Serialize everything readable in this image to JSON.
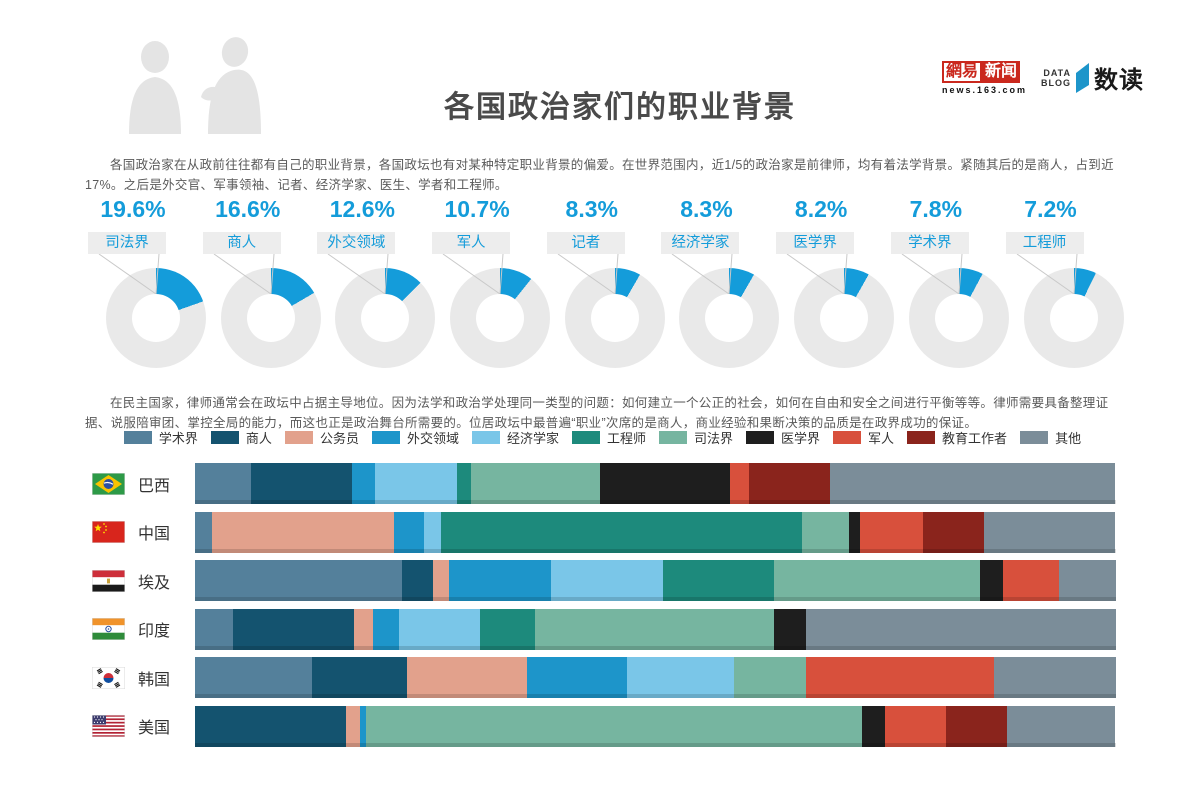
{
  "header": {
    "title": "各国政治家们的职业背景",
    "brand": {
      "netease_name": "網易",
      "netease_news": "新闻",
      "netease_site": "news.163.com",
      "datablog_line1": "DATA",
      "datablog_line2": "BLOG",
      "shudu": "数读"
    }
  },
  "intro": "各国政治家在从政前往往都有自己的职业背景，各国政坛也有对某种特定职业背景的偏爱。在世界范围内，近1/5的政治家是前律师，均有着法学背景。紧随其后的是商人，占到近17%。之后是外交官、军事领袖、记者、经济学家、医生、学者和工程师。",
  "analysis": "在民主国家，律师通常会在政坛中占据主导地位。因为法学和政治学处理同一类型的问题：如何建立一个公正的社会，如何在自由和安全之间进行平衡等等。律师需要具备整理证据、说服陪审团、掌控全局的能力，而这也正是政治舞台所需要的。位居政坛中最普遍“职业”次席的是商人，商业经验和果断决策的品质是在政界成功的保证。",
  "colors": {
    "accent_blue": "#149cda",
    "ring_gray": "#e9e9e9",
    "label_box_bg": "#ededed",
    "netease_red": "#ca281d"
  },
  "countries": [
    {
      "name": "巴西",
      "flag": "brazil"
    },
    {
      "name": "中国",
      "flag": "china"
    },
    {
      "name": "埃及",
      "flag": "egypt"
    },
    {
      "name": "印度",
      "flag": "india"
    },
    {
      "name": "韩国",
      "flag": "south-korea"
    },
    {
      "name": "美国",
      "flag": "usa"
    }
  ],
  "chart_data": [
    {
      "type": "pie",
      "title": "全球政治家最常见职业背景占比",
      "style": "donut-per-category, blue arc from 12 o'clock on gray ring",
      "unit": "%",
      "labels": [
        "司法界",
        "商人",
        "外交领域",
        "军人",
        "记者",
        "经济学家",
        "医学界",
        "学术界",
        "工程师"
      ],
      "values": [
        19.6,
        16.6,
        12.6,
        10.7,
        8.3,
        8.3,
        8.2,
        7.8,
        7.2
      ]
    },
    {
      "type": "bar",
      "stacked": true,
      "orientation": "horizontal",
      "unit": "%",
      "xlim": [
        0,
        100
      ],
      "legend_position": "top",
      "categories": [
        "巴西",
        "中国",
        "埃及",
        "印度",
        "韩国",
        "美国"
      ],
      "series": [
        {
          "name": "学术界",
          "color": "#54809b",
          "values": [
            6.1,
            1.8,
            22.5,
            4.1,
            12.7,
            0
          ]
        },
        {
          "name": "商人",
          "color": "#14536f",
          "values": [
            10.9,
            0,
            3.3,
            13.2,
            10.3,
            16.4
          ]
        },
        {
          "name": "公务员",
          "color": "#e2a18c",
          "values": [
            0,
            19.8,
            1.8,
            2.0,
            13.1,
            1.5
          ]
        },
        {
          "name": "外交领域",
          "color": "#1d95ca",
          "values": [
            2.6,
            3.3,
            11.1,
            2.8,
            10.8,
            0.7
          ]
        },
        {
          "name": "经济学家",
          "color": "#7ac6e8",
          "values": [
            8.9,
            1.8,
            12.1,
            8.8,
            11.6,
            0
          ]
        },
        {
          "name": "工程师",
          "color": "#1d8a7c",
          "values": [
            1.5,
            39.2,
            12.1,
            6.0,
            0,
            0
          ]
        },
        {
          "name": "司法界",
          "color": "#76b5a0",
          "values": [
            14.0,
            5.1,
            22.3,
            26.0,
            7.8,
            53.8
          ]
        },
        {
          "name": "医学界",
          "color": "#1e1e1e",
          "values": [
            14.1,
            1.2,
            2.5,
            3.4,
            0,
            2.5
          ]
        },
        {
          "name": "军人",
          "color": "#d8503c",
          "values": [
            2.1,
            6.9,
            6.1,
            0,
            20.5,
            6.7
          ]
        },
        {
          "name": "教育工作者",
          "color": "#8a241c",
          "values": [
            8.8,
            6.6,
            0,
            0,
            0,
            6.6
          ]
        },
        {
          "name": "其他",
          "color": "#7b8d99",
          "values": [
            30.9,
            14.2,
            6.2,
            33.7,
            13.2,
            11.7
          ]
        }
      ]
    }
  ]
}
